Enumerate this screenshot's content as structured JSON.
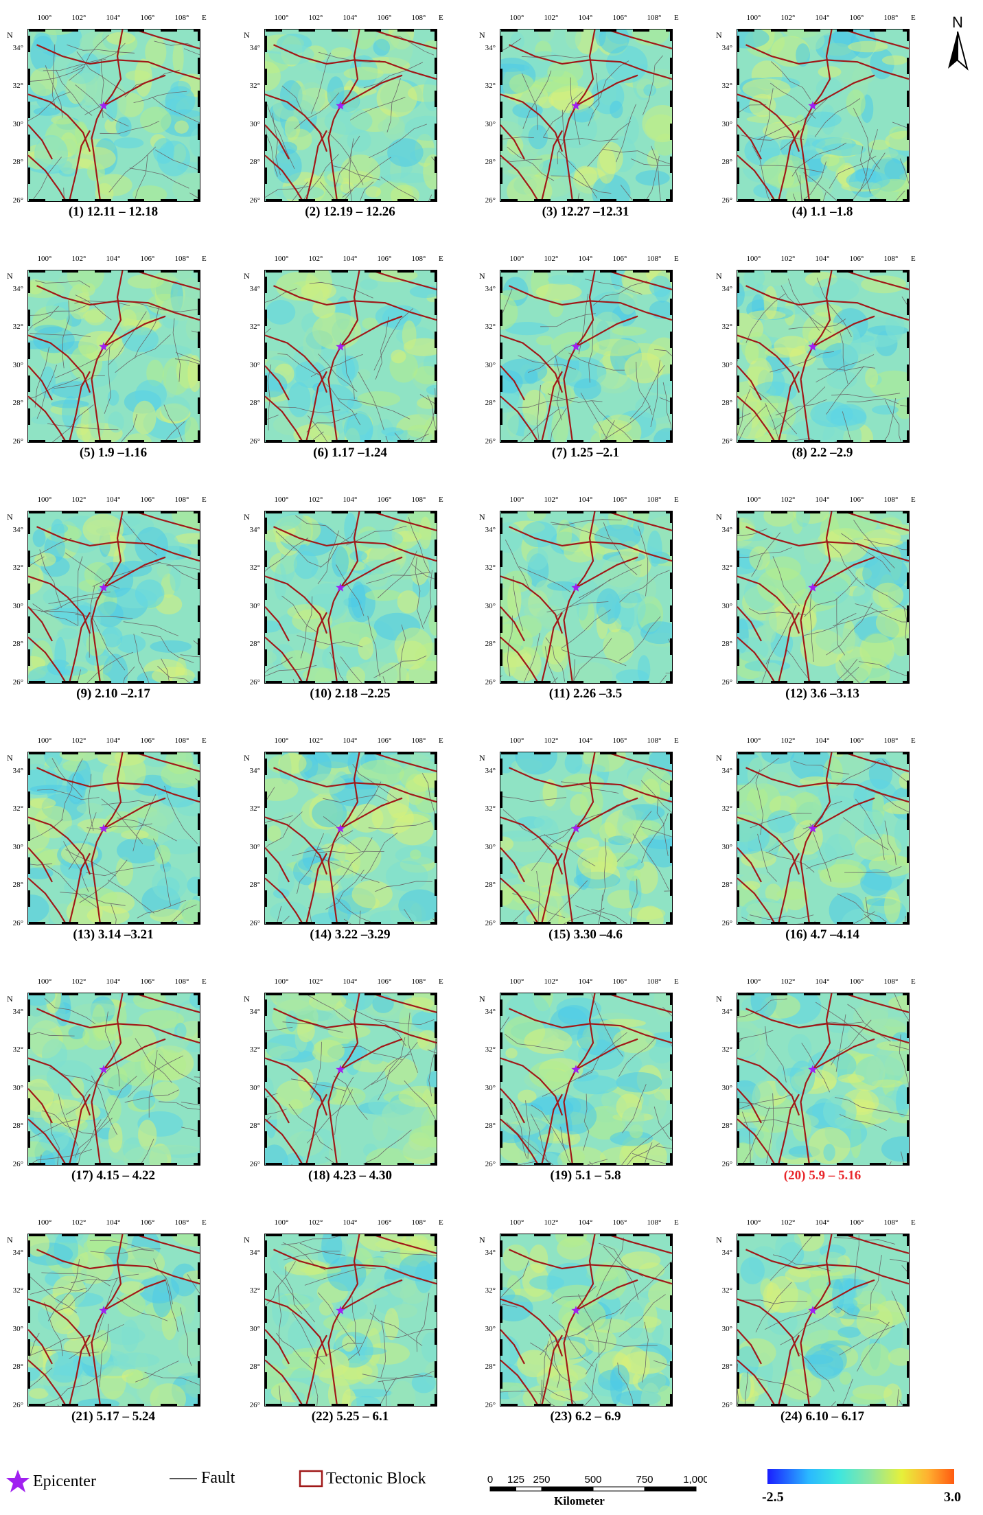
{
  "map": {
    "lon_labels": [
      "100°",
      "102°",
      "104°",
      "106°",
      "108°"
    ],
    "lat_labels": [
      "34°",
      "32°",
      "30°",
      "28°",
      "26°"
    ],
    "north_label": "N",
    "east_label": "E",
    "lon_range": [
      99,
      109
    ],
    "lat_range": [
      26,
      35
    ],
    "epicenter": {
      "lon": 103.4,
      "lat": 31.0
    }
  },
  "panels": [
    {
      "caption": "(1) 12.11 – 12.18",
      "highlight": false
    },
    {
      "caption": "(2) 12.19 – 12.26",
      "highlight": false
    },
    {
      "caption": "(3) 12.27 –12.31",
      "highlight": false
    },
    {
      "caption": "(4) 1.1 –1.8",
      "highlight": false
    },
    {
      "caption": "(5) 1.9 –1.16",
      "highlight": false
    },
    {
      "caption": "(6) 1.17 –1.24",
      "highlight": false
    },
    {
      "caption": "(7) 1.25 –2.1",
      "highlight": false
    },
    {
      "caption": "(8) 2.2 –2.9",
      "highlight": false
    },
    {
      "caption": "(9) 2.10 –2.17",
      "highlight": false
    },
    {
      "caption": "(10) 2.18 –2.25",
      "highlight": false
    },
    {
      "caption": "(11) 2.26 –3.5",
      "highlight": false
    },
    {
      "caption": "(12) 3.6 –3.13",
      "highlight": false
    },
    {
      "caption": "(13) 3.14 –3.21",
      "highlight": false
    },
    {
      "caption": "(14) 3.22 –3.29",
      "highlight": false
    },
    {
      "caption": "(15) 3.30 –4.6",
      "highlight": false
    },
    {
      "caption": "(16) 4.7 –4.14",
      "highlight": false
    },
    {
      "caption": "(17) 4.15 – 4.22",
      "highlight": false
    },
    {
      "caption": "(18) 4.23 – 4.30",
      "highlight": false
    },
    {
      "caption": "(19) 5.1 – 5.8",
      "highlight": false
    },
    {
      "caption": "(20) 5.9 – 5.16",
      "highlight": true
    },
    {
      "caption": "(21) 5.17 – 5.24",
      "highlight": false
    },
    {
      "caption": "(22) 5.25 – 6.1",
      "highlight": false
    },
    {
      "caption": "(23) 6.2 – 6.9",
      "highlight": false
    },
    {
      "caption": "(24) 6.10 – 6.17",
      "highlight": false
    }
  ],
  "north_arrow": {
    "label": "N",
    "icon": "north-arrow-icon"
  },
  "legend": {
    "epicenter_label": "Epicenter",
    "fault_label": "Fault",
    "block_label": "Tectonic Block",
    "epicenter_color": "#a020f0",
    "fault_color": "#555555",
    "block_color": "#a01818"
  },
  "scale": {
    "ticks": [
      "0",
      "125",
      "250",
      "500",
      "750",
      "1,000"
    ],
    "tick_values": [
      0,
      125,
      250,
      500,
      750,
      1000
    ],
    "unit": "Kilometer"
  },
  "colorbar": {
    "min": "-2.5",
    "max": "3.0"
  }
}
